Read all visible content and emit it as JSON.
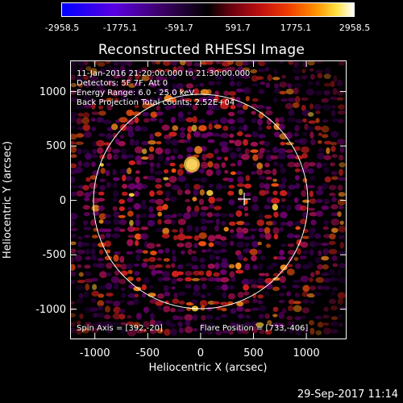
{
  "colorbar": {
    "ticks": [
      "-2958.5",
      "-1775.1",
      "-591.7",
      "591.7",
      "1775.1",
      "2958.5"
    ]
  },
  "title": "Reconstructed RHESSI Image",
  "info": {
    "line1": "11-Jan-2016 21:20:00.000 to 21:30:00.000",
    "line2": "Detectors: 5F 7F, Att 0",
    "line3": "Energy Range: 6.0 - 25.0 keV",
    "line4": "Back Projection   Total counts: 2.52E+04",
    "spin_axis": "Spin Axis = [392,-20]",
    "flare_position": "Flare Position = [733,-406]"
  },
  "axes": {
    "xlabel": "Heliocentric X (arcsec)",
    "ylabel": "Heliocentric Y (arcsec)",
    "xticks": [
      "-1000",
      "-500",
      "0",
      "500",
      "1000"
    ],
    "yticks": [
      "-1000",
      "-500",
      "0",
      "500",
      "1000"
    ],
    "xrange": [
      -1290,
      1270
    ],
    "yrange": [
      -1290,
      1270
    ]
  },
  "timestamp": "29-Sep-2017 11:14",
  "colors": {
    "background": "#000000",
    "foreground": "#ffffff"
  }
}
